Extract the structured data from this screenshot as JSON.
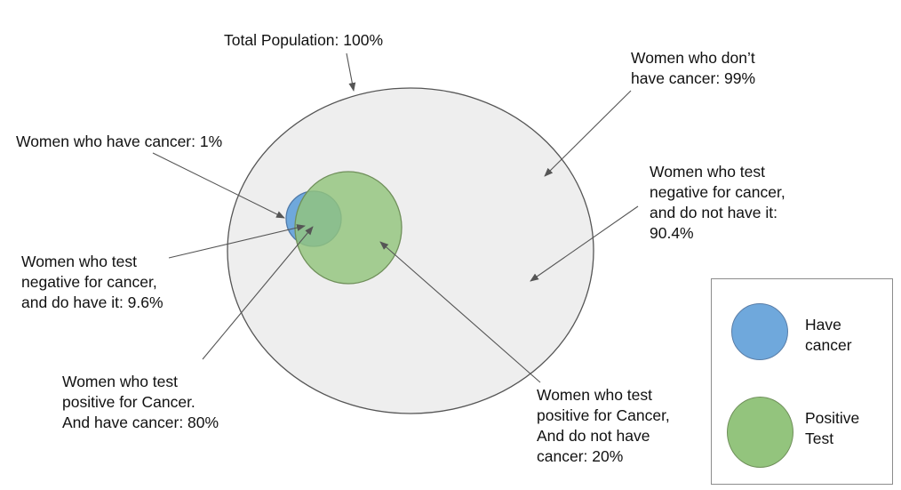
{
  "diagram": {
    "labels": {
      "total_population": "Total Population: 100%",
      "no_cancer": "Women who don’t\nhave cancer: 99%",
      "have_cancer": "Women who have cancer: 1%",
      "true_negative": "Women who test\nnegative for cancer,\nand do not have it:\n90.4%",
      "false_negative": "Women who test\nnegative for cancer,\nand do have it: 9.6%",
      "true_positive": "Women who test\npositive for Cancer.\nAnd have cancer: 80%",
      "false_positive": "Women who test\npositive for Cancer,\nAnd do not have\ncancer: 20%"
    },
    "legend": {
      "have_cancer": "Have\ncancer",
      "positive_test": "Positive\nTest"
    },
    "colors": {
      "population_fill": "#eeeeee",
      "population_stroke": "#555555",
      "cancer_fill": "#6fa8dc",
      "cancer_stroke": "#4f79a8",
      "positive_fill": "#93c47d",
      "positive_stroke": "#6f8f5a",
      "arrow": "#555555"
    }
  }
}
